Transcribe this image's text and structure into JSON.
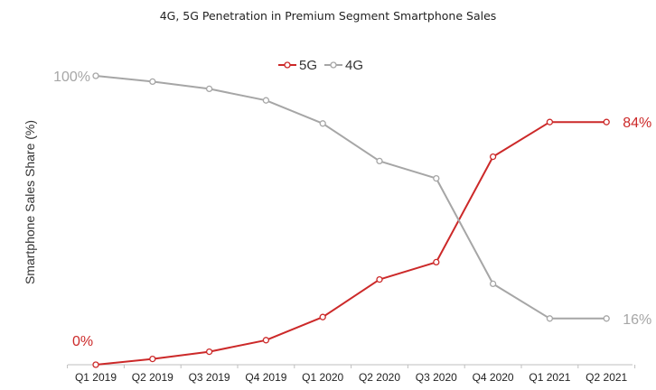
{
  "chart_data": {
    "type": "line",
    "title": "4G, 5G Penetration in Premium Segment Smartphone Sales",
    "xlabel": "",
    "ylabel": "Smartphone Sales Share (%)",
    "ylim": [
      0,
      100
    ],
    "grid": false,
    "legend": "top-center",
    "categories": [
      "Q1 2019",
      "Q2 2019",
      "Q3 2019",
      "Q4 2019",
      "Q1 2020",
      "Q2 2020",
      "Q3 2020",
      "Q4 2020",
      "Q1 2021",
      "Q2 2021"
    ],
    "series": [
      {
        "name": "5G",
        "color": "#cc2929",
        "values": [
          0,
          2,
          4.5,
          8.5,
          16.5,
          29.5,
          35.5,
          72,
          84,
          84
        ]
      },
      {
        "name": "4G",
        "color": "#a6a6a6",
        "values": [
          100,
          98,
          95.5,
          91.5,
          83.5,
          70.5,
          64.5,
          28,
          16,
          16
        ]
      }
    ],
    "annotations": [
      {
        "text": "100%",
        "series": "4G",
        "index": 0,
        "side": "left",
        "color": "#a6a6a6"
      },
      {
        "text": "0%",
        "series": "5G",
        "index": 0,
        "side": "left",
        "color": "#cc2929"
      },
      {
        "text": "84%",
        "series": "5G",
        "index": 9,
        "side": "right",
        "color": "#cc2929"
      },
      {
        "text": "16%",
        "series": "4G",
        "index": 9,
        "side": "right",
        "color": "#a6a6a6"
      }
    ]
  }
}
